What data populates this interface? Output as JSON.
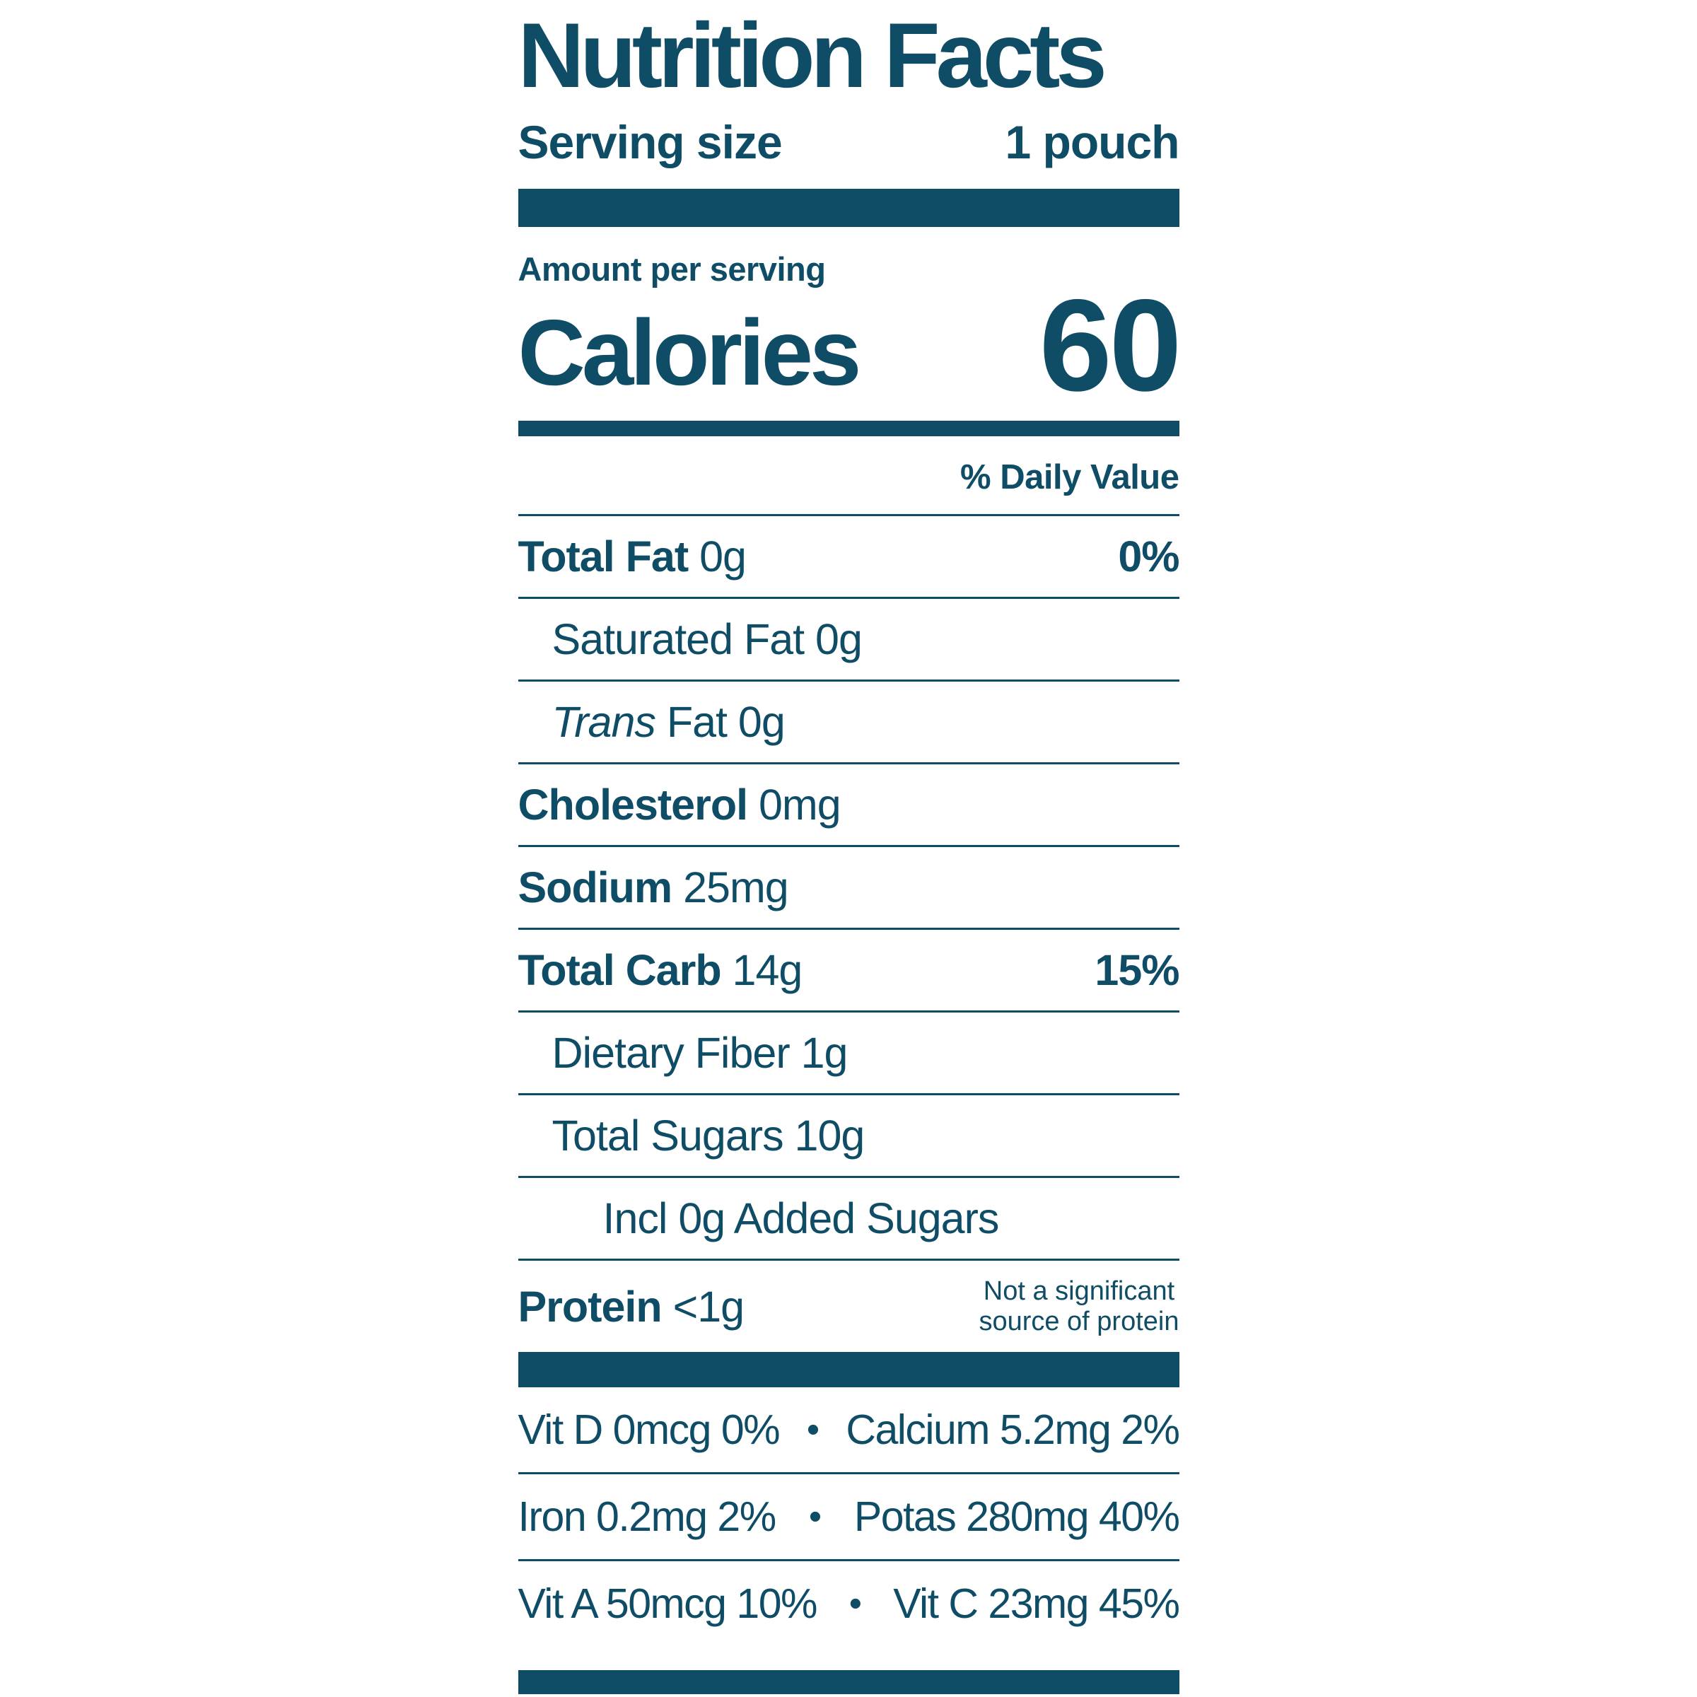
{
  "colors": {
    "ink": "#0f4c66"
  },
  "label": {
    "title": "Nutrition Facts",
    "serving": {
      "label": "Serving size",
      "value": "1 pouch"
    },
    "amount_per_serving": "Amount per serving",
    "calories": {
      "label": "Calories",
      "value": "60"
    },
    "daily_value_header": "% Daily Value",
    "rows": [
      {
        "bold": "Total Fat",
        "text": " 0g",
        "dv": "0%"
      },
      {
        "text": "Saturated Fat 0g"
      },
      {
        "italic": "Trans",
        "text": " Fat 0g"
      },
      {
        "bold": "Cholesterol",
        "text": " 0mg"
      },
      {
        "bold": "Sodium",
        "text": " 25mg"
      },
      {
        "bold": "Total Carb",
        "text": " 14g",
        "dv": "15%"
      },
      {
        "text": "Dietary Fiber 1g"
      },
      {
        "text": "Total Sugars 10g"
      },
      {
        "text": "Incl 0g Added Sugars"
      },
      {
        "bold": "Protein",
        "text": " <1g",
        "note_line1": "Not a significant",
        "note_line2": "source of protein"
      }
    ],
    "bullet": "•",
    "vitamins": [
      {
        "left": "Vit D 0mcg 0%",
        "right": "Calcium 5.2mg 2%"
      },
      {
        "left": "Iron 0.2mg 2%",
        "right": "Potas 280mg 40%"
      },
      {
        "left": "Vit A 50mcg 10%",
        "right": "Vit C 23mg 45%"
      }
    ]
  }
}
